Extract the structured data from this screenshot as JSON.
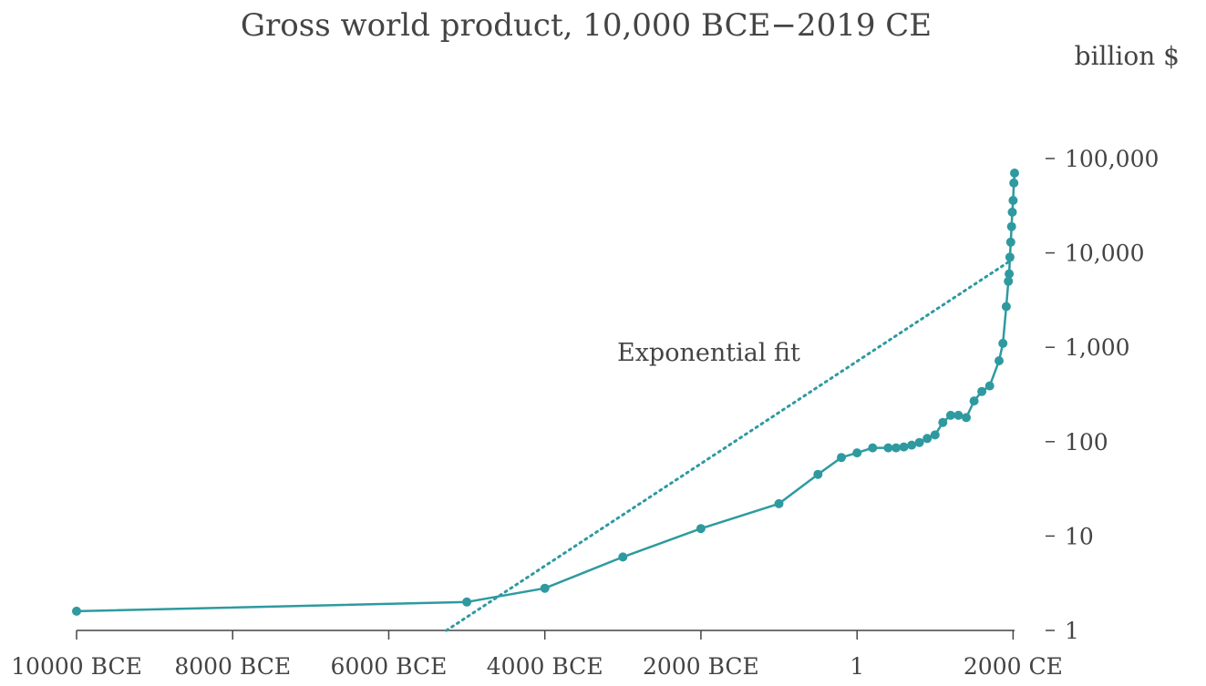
{
  "colors": {
    "series": "#2e9aa0",
    "text": "#444444",
    "axis": "#444444"
  },
  "chart_data": {
    "type": "line",
    "title": "Gross world product, 10,000 BCE−2019 CE",
    "ylabel": "billion $",
    "xlabel": "",
    "y_scale": "log",
    "ylim": [
      1,
      100000
    ],
    "xlim": [
      -10000,
      2019
    ],
    "x_ticks": [
      {
        "value": -10000,
        "label": "10000 BCE"
      },
      {
        "value": -8000,
        "label": "8000 BCE"
      },
      {
        "value": -6000,
        "label": "6000 BCE"
      },
      {
        "value": -4000,
        "label": "4000 BCE"
      },
      {
        "value": -2000,
        "label": "2000 BCE"
      },
      {
        "value": 1,
        "label": "1"
      },
      {
        "value": 2000,
        "label": "2000 CE"
      }
    ],
    "y_ticks": [
      {
        "value": 1,
        "label": "1"
      },
      {
        "value": 10,
        "label": "10"
      },
      {
        "value": 100,
        "label": "100"
      },
      {
        "value": 1000,
        "label": "1,000"
      },
      {
        "value": 10000,
        "label": "10,000"
      },
      {
        "value": 100000,
        "label": "100,000"
      }
    ],
    "series": [
      {
        "name": "Gross world product",
        "style": "solid-with-markers",
        "points": [
          [
            -10000,
            1.6
          ],
          [
            -5000,
            2.0
          ],
          [
            -4000,
            2.8
          ],
          [
            -3000,
            6
          ],
          [
            -2000,
            12
          ],
          [
            -1000,
            22
          ],
          [
            -500,
            45
          ],
          [
            -200,
            68
          ],
          [
            1,
            76
          ],
          [
            200,
            86
          ],
          [
            400,
            86
          ],
          [
            500,
            86
          ],
          [
            600,
            88
          ],
          [
            700,
            92
          ],
          [
            800,
            98
          ],
          [
            900,
            108
          ],
          [
            1000,
            118
          ],
          [
            1100,
            160
          ],
          [
            1200,
            190
          ],
          [
            1300,
            190
          ],
          [
            1400,
            180
          ],
          [
            1500,
            270
          ],
          [
            1600,
            340
          ],
          [
            1700,
            390
          ],
          [
            1820,
            720
          ],
          [
            1870,
            1100
          ],
          [
            1913,
            2700
          ],
          [
            1940,
            5000
          ],
          [
            1950,
            6000
          ],
          [
            1960,
            9000
          ],
          [
            1970,
            13000
          ],
          [
            1980,
            19000
          ],
          [
            1990,
            27000
          ],
          [
            2000,
            36000
          ],
          [
            2010,
            55000
          ],
          [
            2019,
            70000
          ]
        ]
      },
      {
        "name": "Exponential fit",
        "style": "dotted",
        "points": [
          [
            -5260,
            1.0
          ],
          [
            1990,
            8500
          ]
        ]
      }
    ],
    "annotations": [
      {
        "text": "Exponential fit"
      }
    ]
  }
}
